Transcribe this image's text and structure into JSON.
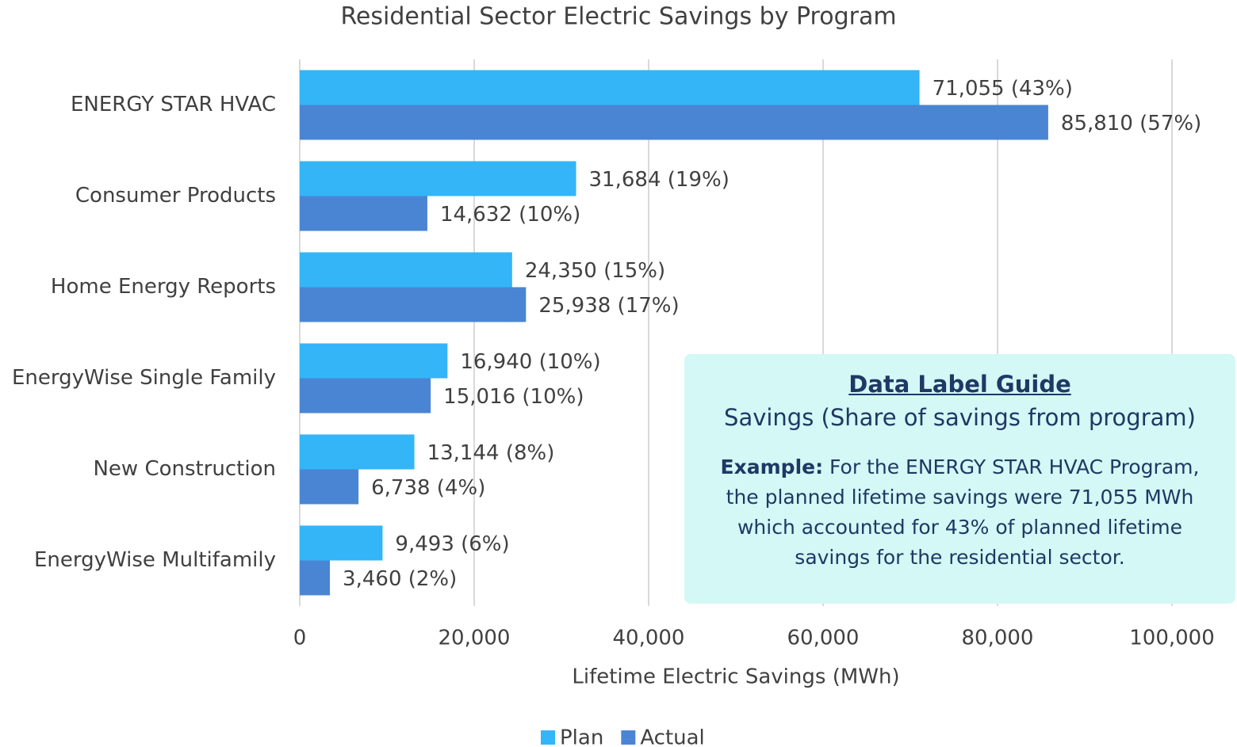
{
  "chart_data": {
    "type": "hbar",
    "title": "Residential Sector Electric Savings by Program",
    "x_label": "Lifetime Electric Savings (MWh)",
    "categories": [
      "ENERGY STAR HVAC",
      "Consumer Products",
      "Home Energy Reports",
      "EnergyWise Single Family",
      "New Construction",
      "EnergyWise Multifamily"
    ],
    "series": [
      {
        "name": "Plan",
        "color": "#33b5f7",
        "values": [
          71055,
          31684,
          24350,
          16940,
          13144,
          9493
        ],
        "value_labels": [
          "71,055 (43%)",
          "31,684 (19%)",
          "24,350 (15%)",
          "16,940 (10%)",
          "13,144 (8%)",
          "9,493 (6%)"
        ]
      },
      {
        "name": "Actual",
        "color": "#4a85d4",
        "values": [
          85810,
          14632,
          25938,
          15016,
          6738,
          3460
        ],
        "value_labels": [
          "85,810 (57%)",
          "14,632 (10%)",
          "25,938 (17%)",
          "15,016 (10%)",
          "6,738 (4%)",
          "3,460 (2%)"
        ]
      }
    ],
    "xlim": [
      0,
      100000
    ],
    "xticks": [
      0,
      {
        "value": 20000,
        "label": "20,000"
      },
      {
        "value": 40000,
        "label": "40,000"
      },
      {
        "value": 60000,
        "label": "60,000"
      },
      {
        "value": 80000,
        "label": "80,000"
      },
      {
        "value": 100000,
        "label": "100,000"
      }
    ],
    "grid": true,
    "legend": "bottom",
    "annotation": {
      "title": "Data Label Guide",
      "subtitle": "Savings (Share of savings from program)",
      "example_label": "Example:",
      "example_text": "For the ENERGY STAR HVAC Program, the planned lifetime savings were 71,055 MWh which accounted for 43% of planned lifetime savings for the residential sector."
    }
  }
}
